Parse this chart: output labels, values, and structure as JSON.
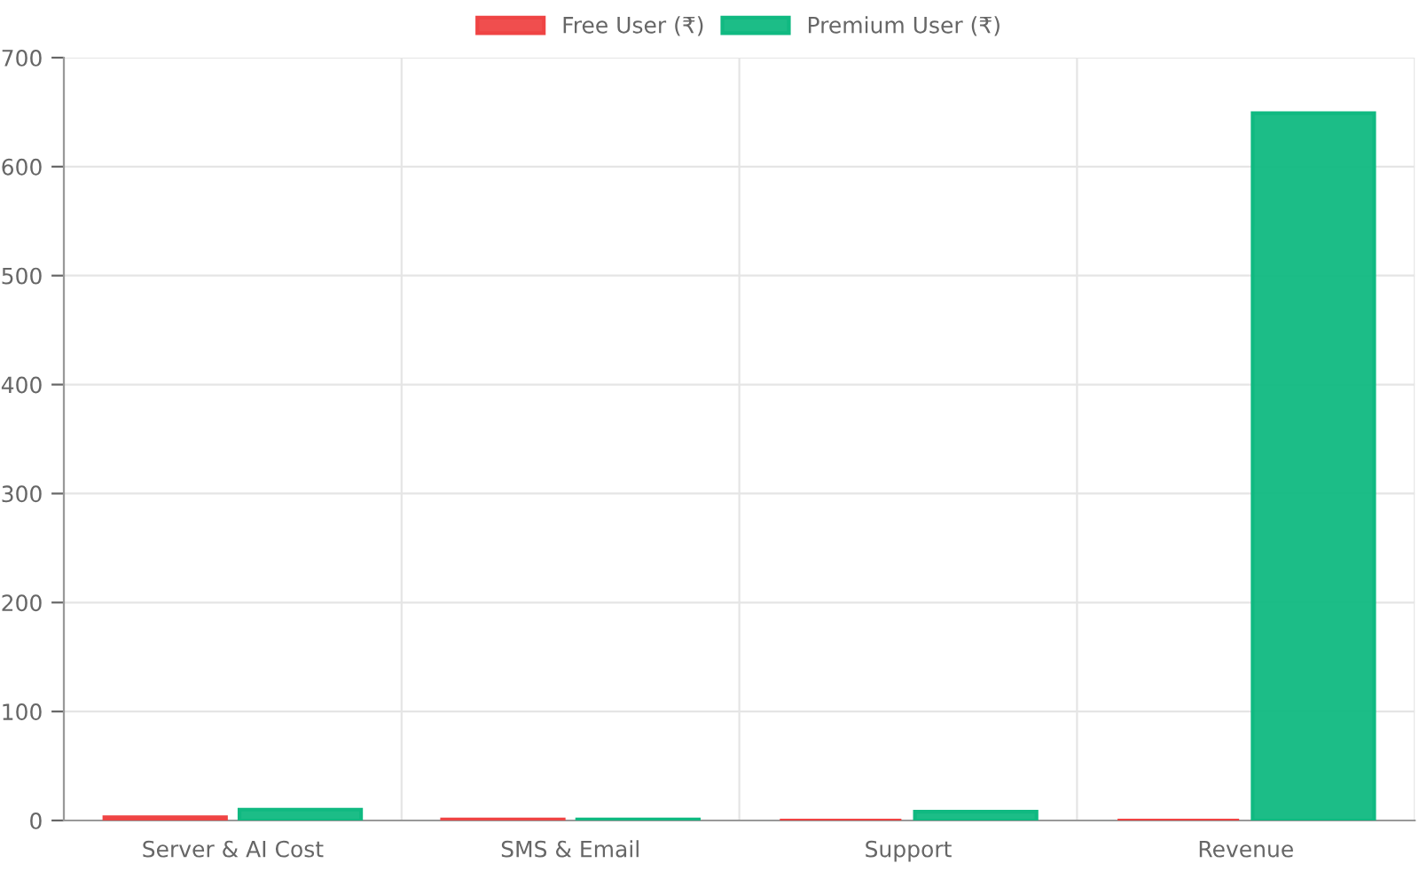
{
  "chart_data": {
    "type": "bar",
    "categories": [
      "Server & AI Cost",
      "SMS & Email",
      "Support",
      "Revenue"
    ],
    "series": [
      {
        "name": "Free User (₹)",
        "color": "#ef4444",
        "values": [
          3,
          1,
          0,
          0
        ]
      },
      {
        "name": "Premium User (₹)",
        "color": "#10b981",
        "values": [
          10,
          1,
          8,
          649
        ]
      }
    ],
    "ylim": [
      0,
      700
    ],
    "yticks": [
      0,
      100,
      200,
      300,
      400,
      500,
      600,
      700
    ],
    "grid": true,
    "legend": "top"
  }
}
